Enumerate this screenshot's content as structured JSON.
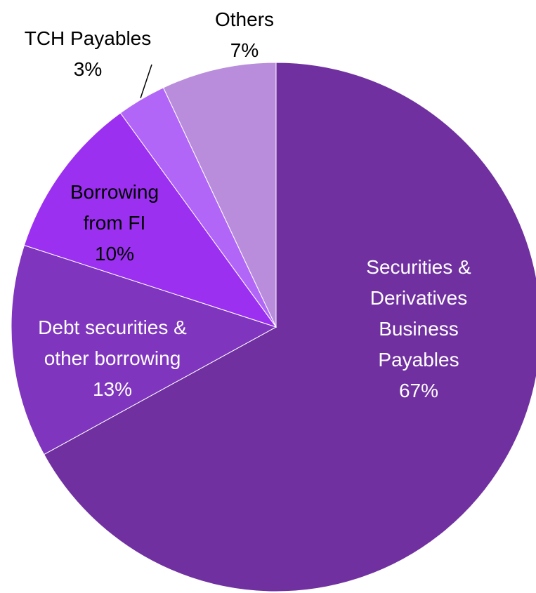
{
  "chart_data": {
    "type": "pie",
    "start_angle_deg": 0,
    "direction": "clockwise",
    "slices": [
      {
        "label": [
          "Securities &",
          "Derivatives",
          "Business",
          "Payables"
        ],
        "percent_label": "67%",
        "value": 67,
        "color": "#7030a0",
        "label_color": "#ffffff"
      },
      {
        "label": [
          "Debt securities &",
          "other borrowing"
        ],
        "percent_label": "13%",
        "value": 13,
        "color": "#7f35bd",
        "label_color": "#ffffff"
      },
      {
        "label": [
          "Borrowing",
          "from FI"
        ],
        "percent_label": "10%",
        "value": 10,
        "color": "#9b30f0",
        "label_color": "#000000"
      },
      {
        "label": [
          "TCH Payables"
        ],
        "percent_label": "3%",
        "value": 3,
        "color": "#b266f7",
        "label_color": "#000000"
      },
      {
        "label": [
          "Others"
        ],
        "percent_label": "7%",
        "value": 7,
        "color": "#b98ddc",
        "label_color": "#000000"
      }
    ]
  }
}
